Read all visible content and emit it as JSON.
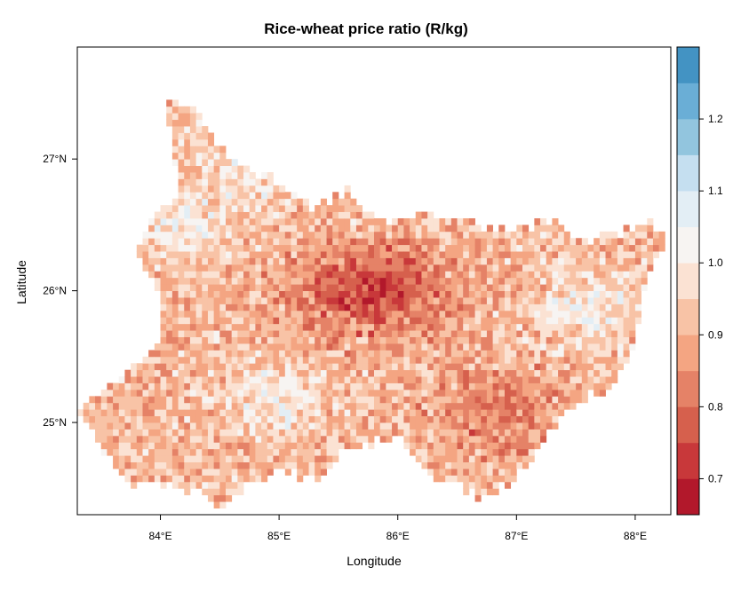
{
  "chart_data": {
    "type": "heatmap",
    "title": "Rice-wheat price ratio (R/kg)",
    "xlabel": "Longitude",
    "ylabel": "Latitude",
    "xlim": [
      83.3,
      88.3
    ],
    "ylim": [
      24.3,
      27.85
    ],
    "x_ticks": [
      {
        "value": 84,
        "label": "84°E"
      },
      {
        "value": 85,
        "label": "85°E"
      },
      {
        "value": 86,
        "label": "86°E"
      },
      {
        "value": 87,
        "label": "87°E"
      },
      {
        "value": 88,
        "label": "88°E"
      }
    ],
    "y_ticks": [
      {
        "value": 25,
        "label": "25°N"
      },
      {
        "value": 26,
        "label": "26°N"
      },
      {
        "value": 27,
        "label": "27°N"
      }
    ],
    "colorbar": {
      "range": [
        0.65,
        1.3
      ],
      "breaks": [
        0.65,
        0.7,
        0.75,
        0.8,
        0.85,
        0.9,
        0.95,
        1.0,
        1.05,
        1.1,
        1.15,
        1.2,
        1.25,
        1.3
      ],
      "colors": [
        "#b2182b",
        "#c8383a",
        "#d6604d",
        "#e58267",
        "#f4a582",
        "#f8c3a6",
        "#fbe2d3",
        "#f7f4f2",
        "#e3eef5",
        "#c5dff0",
        "#92c5de",
        "#6aaed6",
        "#4393c3",
        "#2166ac"
      ],
      "tick_labels": [
        {
          "value": 0.7,
          "label": "0.7"
        },
        {
          "value": 0.8,
          "label": "0.8"
        },
        {
          "value": 0.9,
          "label": "0.9"
        },
        {
          "value": 1.0,
          "label": "1.0"
        },
        {
          "value": 1.1,
          "label": "1.1"
        },
        {
          "value": 1.2,
          "label": "1.2"
        }
      ]
    },
    "grid_resolution_deg": 0.05,
    "region_outline": {
      "north": [
        [
          84.0,
          27.45
        ],
        [
          84.3,
          27.4
        ],
        [
          84.6,
          27.0
        ],
        [
          85.0,
          26.85
        ],
        [
          85.3,
          26.65
        ],
        [
          85.6,
          26.8
        ],
        [
          85.8,
          26.55
        ],
        [
          86.1,
          26.6
        ],
        [
          86.5,
          26.55
        ],
        [
          86.8,
          26.5
        ],
        [
          87.0,
          26.5
        ],
        [
          87.3,
          26.55
        ],
        [
          87.5,
          26.4
        ],
        [
          87.8,
          26.45
        ],
        [
          88.1,
          26.55
        ],
        [
          88.3,
          26.45
        ]
      ],
      "south": [
        [
          83.3,
          25.1
        ],
        [
          83.55,
          24.7
        ],
        [
          83.8,
          24.5
        ],
        [
          84.1,
          24.5
        ],
        [
          84.3,
          24.45
        ],
        [
          84.5,
          24.35
        ],
        [
          84.8,
          24.55
        ],
        [
          85.0,
          24.6
        ],
        [
          85.3,
          24.55
        ],
        [
          85.6,
          24.8
        ],
        [
          86.0,
          24.85
        ],
        [
          86.3,
          24.55
        ],
        [
          86.5,
          24.5
        ],
        [
          86.7,
          24.4
        ],
        [
          87.0,
          24.55
        ],
        [
          87.2,
          24.8
        ],
        [
          87.35,
          25.0
        ],
        [
          87.5,
          25.15
        ],
        [
          87.8,
          25.25
        ],
        [
          88.0,
          25.6
        ],
        [
          88.1,
          26.1
        ],
        [
          88.3,
          26.45
        ]
      ],
      "west": [
        [
          83.3,
          25.1
        ],
        [
          83.6,
          25.3
        ],
        [
          84.0,
          25.6
        ],
        [
          84.0,
          25.95
        ],
        [
          83.8,
          26.3
        ],
        [
          83.95,
          26.6
        ],
        [
          84.15,
          26.7
        ],
        [
          84.1,
          27.2
        ],
        [
          84.0,
          27.45
        ]
      ]
    },
    "pattern_notes": {
      "low_ratio_center": [
        85.8,
        26.0
      ],
      "high_ratio_areas": [
        [
          84.2,
          26.5
        ],
        [
          87.6,
          25.9
        ],
        [
          85.0,
          25.2
        ],
        [
          84.8,
          27.0
        ]
      ]
    }
  }
}
